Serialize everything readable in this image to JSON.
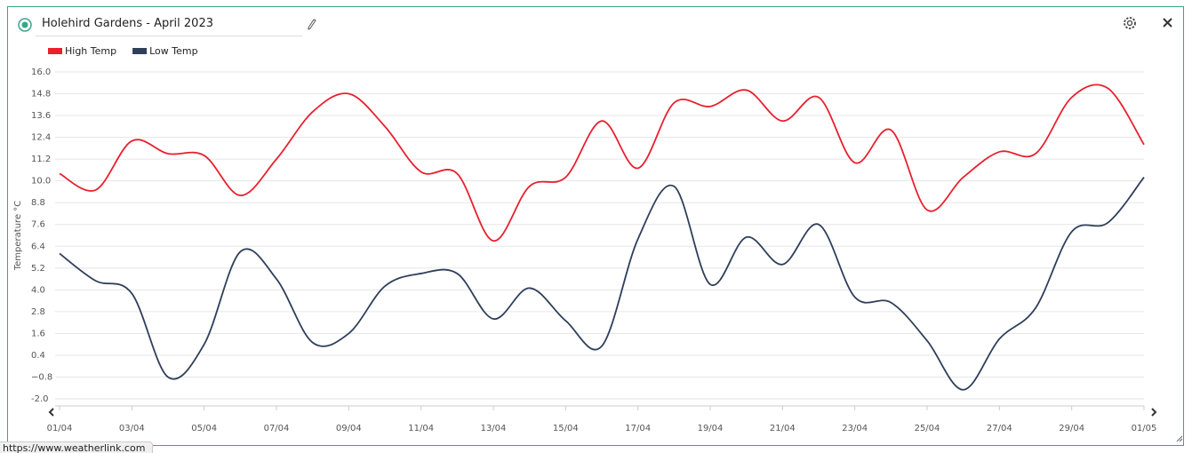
{
  "header": {
    "title": "Holehird Gardens - April 2023"
  },
  "status_url": "https://www.weatherlink.com",
  "chart_data": {
    "type": "line",
    "y_label": "Temperature °C",
    "categories": [
      "01/04",
      null,
      "03/04",
      null,
      "05/04",
      null,
      "07/04",
      null,
      "09/04",
      null,
      "11/04",
      null,
      "13/04",
      null,
      "15/04",
      null,
      "17/04",
      null,
      "19/04",
      null,
      "21/04",
      null,
      "23/04",
      null,
      "25/04",
      null,
      "27/04",
      null,
      "29/04",
      null,
      "01/05"
    ],
    "series": [
      {
        "name": "High Temp",
        "color": "#e8202f",
        "values": [
          10.4,
          9.5,
          12.2,
          11.5,
          11.4,
          9.2,
          11.2,
          13.8,
          14.8,
          13.0,
          10.5,
          10.4,
          6.7,
          9.7,
          10.2,
          13.3,
          10.7,
          14.3,
          14.1,
          15.0,
          13.3,
          14.6,
          11.0,
          12.8,
          8.4,
          10.2,
          11.6,
          11.5,
          14.6,
          15.1,
          12.0
        ]
      },
      {
        "name": "Low Temp",
        "color": "#2f3f5a",
        "values": [
          6.0,
          4.5,
          3.8,
          -0.8,
          1.0,
          6.1,
          4.6,
          1.1,
          1.6,
          4.2,
          4.9,
          4.9,
          2.4,
          4.1,
          2.3,
          0.9,
          6.8,
          9.7,
          4.3,
          6.9,
          5.4,
          7.6,
          3.6,
          3.3,
          1.2,
          -1.5,
          1.3,
          3.0,
          7.2,
          7.7,
          10.2
        ]
      }
    ],
    "ylim": [
      -2,
      16
    ],
    "yticks": [
      {
        "value": -2,
        "label": "-2.0"
      },
      {
        "value": -0.8,
        "label": "−0.8"
      },
      0.4,
      1.6,
      2.8,
      {
        "value": 4,
        "label": "4.0"
      },
      5.2,
      6.4,
      7.6,
      8.8,
      {
        "value": 10,
        "label": "10.0"
      },
      11.2,
      12.4,
      13.6,
      14.8,
      {
        "value": 16,
        "label": "16.0"
      }
    ],
    "grid": true,
    "legend": "top-left"
  }
}
